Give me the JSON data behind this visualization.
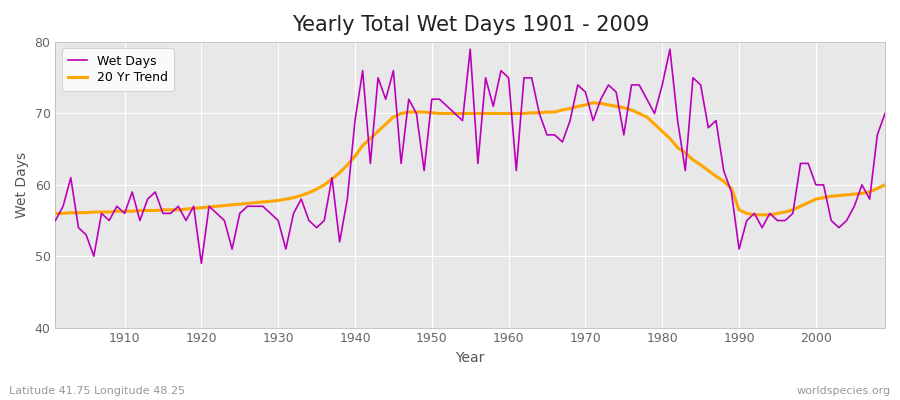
{
  "title": "Yearly Total Wet Days 1901 - 2009",
  "xlabel": "Year",
  "ylabel": "Wet Days",
  "bottom_left_label": "Latitude 41.75 Longitude 48.25",
  "bottom_right_label": "worldspecies.org",
  "legend_labels": [
    "Wet Days",
    "20 Yr Trend"
  ],
  "wet_days_color": "#bb00bb",
  "trend_color": "#ffa500",
  "plot_bg_color": "#e8e8e8",
  "fig_bg_color": "#ffffff",
  "ylim": [
    40,
    80
  ],
  "xlim": [
    1901,
    2009
  ],
  "yticks": [
    40,
    50,
    60,
    70,
    80
  ],
  "xticks": [
    1910,
    1920,
    1930,
    1940,
    1950,
    1960,
    1970,
    1980,
    1990,
    2000
  ],
  "wet_days_years": [
    1901,
    1902,
    1903,
    1904,
    1905,
    1906,
    1907,
    1908,
    1909,
    1910,
    1911,
    1912,
    1913,
    1914,
    1915,
    1916,
    1917,
    1918,
    1919,
    1920,
    1921,
    1922,
    1923,
    1924,
    1925,
    1926,
    1927,
    1928,
    1929,
    1930,
    1931,
    1932,
    1933,
    1934,
    1935,
    1936,
    1937,
    1938,
    1939,
    1940,
    1941,
    1942,
    1943,
    1944,
    1945,
    1946,
    1947,
    1948,
    1949,
    1950,
    1951,
    1952,
    1953,
    1954,
    1955,
    1956,
    1957,
    1958,
    1959,
    1960,
    1961,
    1962,
    1963,
    1964,
    1965,
    1966,
    1967,
    1968,
    1969,
    1970,
    1971,
    1972,
    1973,
    1974,
    1975,
    1976,
    1977,
    1978,
    1979,
    1980,
    1981,
    1982,
    1983,
    1984,
    1985,
    1986,
    1987,
    1988,
    1989,
    1990,
    1991,
    1992,
    1993,
    1994,
    1995,
    1996,
    1997,
    1998,
    1999,
    2000,
    2001,
    2002,
    2003,
    2004,
    2005,
    2006,
    2007,
    2008,
    2009
  ],
  "wet_days_values": [
    55,
    57,
    61,
    54,
    53,
    50,
    56,
    55,
    57,
    56,
    59,
    55,
    58,
    59,
    56,
    56,
    57,
    55,
    57,
    49,
    57,
    56,
    55,
    51,
    56,
    57,
    57,
    57,
    56,
    55,
    51,
    56,
    58,
    55,
    54,
    55,
    61,
    52,
    58,
    69,
    76,
    63,
    75,
    72,
    76,
    63,
    72,
    70,
    62,
    72,
    72,
    71,
    70,
    69,
    79,
    63,
    75,
    71,
    76,
    75,
    62,
    75,
    75,
    70,
    67,
    67,
    66,
    69,
    74,
    73,
    69,
    72,
    74,
    73,
    67,
    74,
    74,
    72,
    70,
    74,
    79,
    69,
    62,
    75,
    74,
    68,
    69,
    62,
    59,
    51,
    55,
    56,
    54,
    56,
    55,
    55,
    56,
    63,
    63,
    60,
    60,
    55,
    54,
    55,
    57,
    60,
    58,
    67,
    70
  ],
  "trend_years": [
    1901,
    1902,
    1903,
    1904,
    1905,
    1906,
    1907,
    1908,
    1909,
    1910,
    1911,
    1912,
    1913,
    1914,
    1915,
    1916,
    1917,
    1918,
    1919,
    1920,
    1921,
    1922,
    1923,
    1924,
    1925,
    1926,
    1927,
    1928,
    1929,
    1930,
    1931,
    1932,
    1933,
    1934,
    1935,
    1936,
    1937,
    1938,
    1939,
    1940,
    1941,
    1942,
    1943,
    1944,
    1945,
    1946,
    1947,
    1948,
    1949,
    1950,
    1951,
    1952,
    1953,
    1954,
    1955,
    1956,
    1957,
    1958,
    1959,
    1960,
    1961,
    1962,
    1963,
    1964,
    1965,
    1966,
    1967,
    1968,
    1969,
    1970,
    1971,
    1972,
    1973,
    1974,
    1975,
    1976,
    1977,
    1978,
    1979,
    1980,
    1981,
    1982,
    1983,
    1984,
    1985,
    1986,
    1987,
    1988,
    1989,
    1990,
    1991,
    1992,
    1993,
    1994,
    1995,
    1996,
    1997,
    1998,
    1999,
    2000,
    2001,
    2002,
    2003,
    2004,
    2005,
    2006,
    2007,
    2008,
    2009
  ],
  "trend_values": [
    56.0,
    56.0,
    56.1,
    56.1,
    56.1,
    56.2,
    56.2,
    56.2,
    56.3,
    56.3,
    56.3,
    56.4,
    56.4,
    56.4,
    56.5,
    56.5,
    56.5,
    56.6,
    56.7,
    56.8,
    56.9,
    57.0,
    57.1,
    57.2,
    57.3,
    57.4,
    57.5,
    57.6,
    57.7,
    57.8,
    58.0,
    58.2,
    58.5,
    58.9,
    59.4,
    60.0,
    60.8,
    61.7,
    62.8,
    64.0,
    65.5,
    66.5,
    67.5,
    68.5,
    69.5,
    70.0,
    70.2,
    70.2,
    70.2,
    70.1,
    70.0,
    70.0,
    70.0,
    70.0,
    70.0,
    70.0,
    70.0,
    70.0,
    70.0,
    70.0,
    70.0,
    70.0,
    70.1,
    70.1,
    70.2,
    70.2,
    70.5,
    70.7,
    71.0,
    71.2,
    71.5,
    71.4,
    71.2,
    71.0,
    70.8,
    70.5,
    70.0,
    69.5,
    68.5,
    67.5,
    66.5,
    65.2,
    64.5,
    63.5,
    62.8,
    62.0,
    61.2,
    60.5,
    59.5,
    56.5,
    56.0,
    55.8,
    55.8,
    55.8,
    56.0,
    56.2,
    56.5,
    57.0,
    57.5,
    58.0,
    58.2,
    58.4,
    58.5,
    58.6,
    58.7,
    58.8,
    59.0,
    59.5,
    60.0
  ]
}
